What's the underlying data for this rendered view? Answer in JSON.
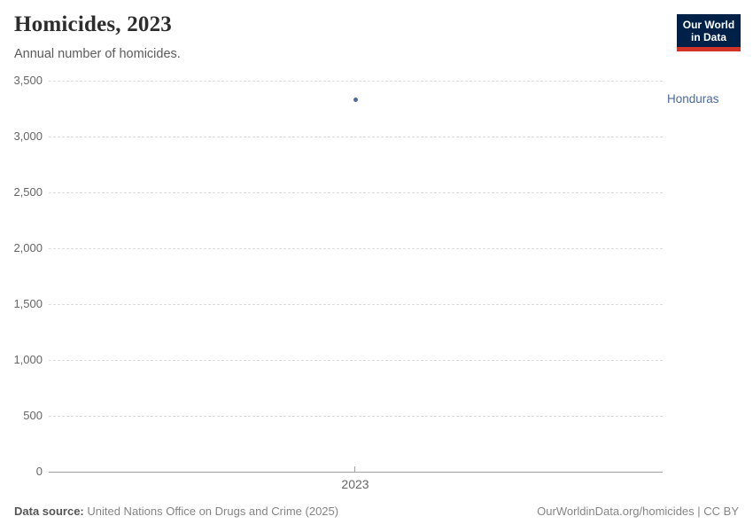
{
  "header": {
    "title": "Homicides, 2023",
    "subtitle": "Annual number of homicides."
  },
  "logo": {
    "line1": "Our World",
    "line2": "in Data",
    "bg_color": "#002147",
    "bar_color": "#d13327"
  },
  "chart_data": {
    "type": "scatter",
    "title": "Homicides, 2023",
    "series": [
      {
        "name": "Honduras",
        "x": [
          2023
        ],
        "values": [
          3333
        ],
        "color": "#4c6a9c"
      }
    ],
    "xlabel": "",
    "ylabel": "",
    "ylim": [
      0,
      3500
    ],
    "xticks": [
      "2023"
    ],
    "yticks": [
      "3,500",
      "3,000",
      "2,500",
      "2,000",
      "1,500",
      "1,000",
      "500",
      "0"
    ],
    "grid": "horizontal-dashed",
    "legend_position": "entity-label-right"
  },
  "entity_label": {
    "text": "Honduras",
    "color": "#4c6a9c"
  },
  "footer": {
    "source_label": "Data source:",
    "source_text": " United Nations Office on Drugs and Crime (2025)",
    "right_text": "OurWorldinData.org/homicides | CC BY"
  }
}
